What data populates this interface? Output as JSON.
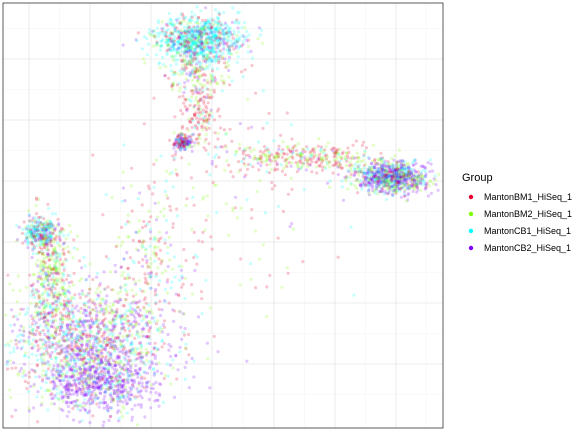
{
  "chart_data": {
    "type": "scatter",
    "title": "",
    "xlabel": "",
    "ylabel": "",
    "grid": true,
    "axis_ticks_labels_shown": false,
    "xlim": [
      0,
      1
    ],
    "ylim": [
      0,
      1
    ],
    "legend": {
      "title": "Group",
      "placement": "right"
    },
    "series": [
      {
        "name": "MantonBM1_HiSeq_1",
        "color": "#E4002B"
      },
      {
        "name": "MantonBM2_HiSeq_1",
        "color": "#80FF00"
      },
      {
        "name": "MantonCB1_HiSeq_1",
        "color": "#00FFFF"
      },
      {
        "name": "MantonCB2_HiSeq_1",
        "color": "#8000FF"
      }
    ]
  }
}
